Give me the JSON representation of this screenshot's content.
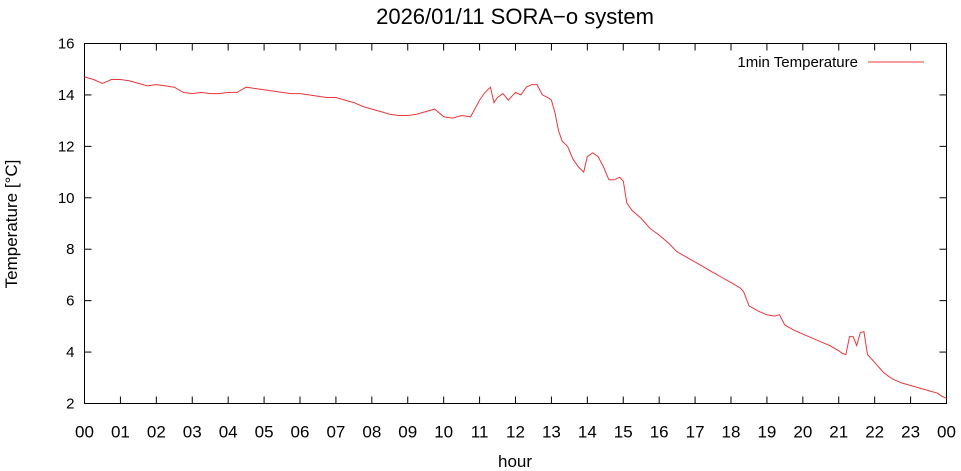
{
  "chart_data": {
    "type": "line",
    "title": "2026/01/11 SORA−o system",
    "xlabel": "hour",
    "ylabel": "Temperature [°C]",
    "xlim": [
      0,
      24
    ],
    "ylim": [
      2,
      16
    ],
    "x_ticks": [
      "00",
      "01",
      "02",
      "03",
      "04",
      "05",
      "06",
      "07",
      "08",
      "09",
      "10",
      "11",
      "12",
      "13",
      "14",
      "15",
      "16",
      "17",
      "18",
      "19",
      "20",
      "21",
      "22",
      "23",
      "00"
    ],
    "y_ticks": [
      2,
      4,
      6,
      8,
      10,
      12,
      14,
      16
    ],
    "grid": false,
    "legend_position": "top-right",
    "colors": {
      "series": "#e8383d",
      "axes": "#000000"
    },
    "series": [
      {
        "name": "1min Temperature",
        "x": [
          0,
          0.25,
          0.5,
          0.75,
          1.0,
          1.25,
          1.5,
          1.75,
          2.0,
          2.25,
          2.5,
          2.75,
          3.0,
          3.25,
          3.5,
          3.75,
          4.0,
          4.25,
          4.5,
          4.75,
          5.0,
          5.25,
          5.5,
          5.75,
          6.0,
          6.25,
          6.5,
          6.75,
          7.0,
          7.25,
          7.5,
          7.75,
          8.0,
          8.25,
          8.5,
          8.75,
          9.0,
          9.25,
          9.5,
          9.75,
          10.0,
          10.25,
          10.5,
          10.75,
          11.0,
          11.15,
          11.3,
          11.4,
          11.5,
          11.65,
          11.8,
          12.0,
          12.15,
          12.3,
          12.45,
          12.6,
          12.75,
          12.9,
          13.0,
          13.1,
          13.2,
          13.3,
          13.45,
          13.6,
          13.75,
          13.9,
          14.0,
          14.15,
          14.3,
          14.45,
          14.6,
          14.75,
          14.9,
          15.0,
          15.1,
          15.25,
          15.5,
          15.75,
          16.0,
          16.25,
          16.5,
          16.75,
          17.0,
          17.25,
          17.5,
          17.75,
          18.0,
          18.25,
          18.35,
          18.5,
          18.75,
          19.0,
          19.2,
          19.35,
          19.5,
          19.75,
          20.0,
          20.25,
          20.5,
          20.75,
          21.0,
          21.1,
          21.2,
          21.3,
          21.4,
          21.5,
          21.6,
          21.7,
          21.8,
          22.0,
          22.25,
          22.5,
          22.75,
          23.0,
          23.25,
          23.5,
          23.75,
          23.85,
          24.0
        ],
        "y": [
          14.7,
          14.6,
          14.45,
          14.6,
          14.6,
          14.55,
          14.45,
          14.35,
          14.4,
          14.35,
          14.3,
          14.1,
          14.05,
          14.1,
          14.05,
          14.05,
          14.1,
          14.1,
          14.3,
          14.25,
          14.2,
          14.15,
          14.1,
          14.05,
          14.05,
          14.0,
          13.95,
          13.9,
          13.9,
          13.8,
          13.7,
          13.55,
          13.45,
          13.35,
          13.25,
          13.2,
          13.2,
          13.25,
          13.35,
          13.45,
          13.15,
          13.1,
          13.2,
          13.15,
          13.8,
          14.1,
          14.3,
          13.7,
          13.9,
          14.05,
          13.8,
          14.1,
          14.0,
          14.3,
          14.4,
          14.4,
          14.0,
          13.9,
          13.8,
          13.3,
          12.6,
          12.2,
          12.0,
          11.5,
          11.2,
          11.0,
          11.6,
          11.75,
          11.6,
          11.2,
          10.7,
          10.7,
          10.8,
          10.65,
          9.8,
          9.5,
          9.2,
          8.8,
          8.55,
          8.25,
          7.9,
          7.7,
          7.5,
          7.3,
          7.1,
          6.9,
          6.7,
          6.5,
          6.35,
          5.8,
          5.6,
          5.45,
          5.4,
          5.45,
          5.05,
          4.85,
          4.7,
          4.55,
          4.4,
          4.25,
          4.05,
          3.95,
          3.9,
          4.6,
          4.6,
          4.25,
          4.75,
          4.8,
          3.9,
          3.6,
          3.2,
          2.95,
          2.8,
          2.7,
          2.6,
          2.5,
          2.4,
          2.3,
          2.2
        ]
      }
    ]
  }
}
